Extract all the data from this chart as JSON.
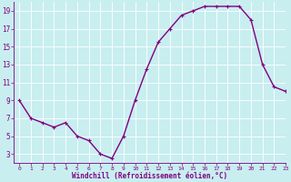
{
  "x": [
    0,
    1,
    2,
    3,
    4,
    5,
    6,
    7,
    8,
    9,
    10,
    11,
    12,
    13,
    14,
    15,
    16,
    17,
    18,
    19,
    20,
    21,
    22,
    23
  ],
  "y": [
    9,
    7,
    6.5,
    6,
    6.5,
    5,
    4.5,
    3,
    2.5,
    5,
    9,
    12.5,
    15.5,
    17,
    18.5,
    19,
    19.5,
    19.5,
    19.5,
    19.5,
    18,
    13,
    10.5,
    10
  ],
  "line_color": "#800080",
  "marker": "+",
  "marker_color": "#800080",
  "bg_color": "#c8eef0",
  "grid_color": "#ffffff",
  "xlabel": "Windchill (Refroidissement éolien,°C)",
  "xlabel_color": "#800080",
  "tick_color": "#800080",
  "ylim": [
    2,
    20
  ],
  "xlim": [
    -0.5,
    23
  ],
  "yticks": [
    3,
    5,
    7,
    9,
    11,
    13,
    15,
    17,
    19
  ],
  "xticks": [
    0,
    1,
    2,
    3,
    4,
    5,
    6,
    7,
    8,
    9,
    10,
    11,
    12,
    13,
    14,
    15,
    16,
    17,
    18,
    19,
    20,
    21,
    22,
    23
  ],
  "spine_color": "#800080",
  "line_width": 1.0,
  "marker_size": 3
}
